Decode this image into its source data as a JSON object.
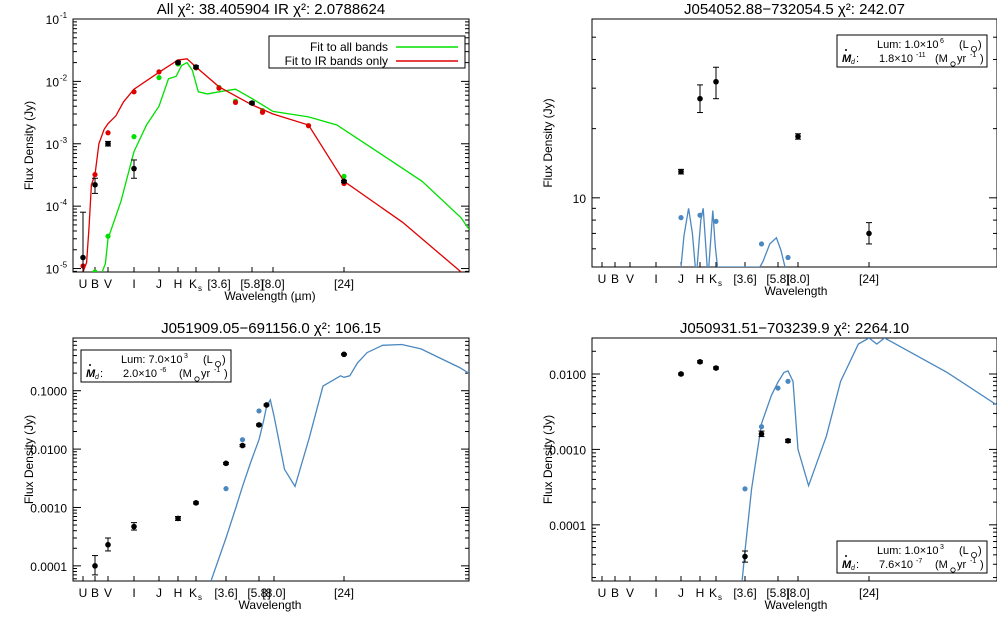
{
  "chart_data": [
    {
      "type": "scatter",
      "title": "All χ²: 38.405904  IR χ²: 2.0788624",
      "xlabel": "Wavelength (µm)",
      "ylabel": "Flux Density (Jy)",
      "yscale": "log",
      "ylim": [
        8.8e-06,
        0.1
      ],
      "bands": [
        "U",
        "B",
        "V",
        "I",
        "J",
        "H",
        "Ks",
        "[3.6]",
        "[5.8]",
        "[8.0]",
        "[24]"
      ],
      "yticks": [
        {
          "value": 0.1,
          "base": "10",
          "exp": "-1"
        },
        {
          "value": 0.01,
          "base": "10",
          "exp": "-2"
        },
        {
          "value": 0.001,
          "base": "10",
          "exp": "-3"
        },
        {
          "value": 0.0001,
          "base": "10",
          "exp": "-4"
        },
        {
          "value": 1e-05,
          "base": "10",
          "exp": "-5"
        }
      ],
      "legend": {
        "position": "top-right",
        "entries": [
          {
            "label": "Fit to all bands",
            "color": "#00e000"
          },
          {
            "label": "Fit to IR bands only",
            "color": "#e00000"
          }
        ]
      },
      "observed": [
        {
          "band": 0,
          "y": 1.5e-05,
          "err": [
            8.8e-06,
            8e-05
          ]
        },
        {
          "band": 1,
          "y": 0.00022,
          "err": [
            0.00016,
            0.00028
          ]
        },
        {
          "band": 2,
          "y": 0.001,
          "err": [
            0.00092,
            0.00109
          ]
        },
        {
          "band": 3,
          "y": 0.0004,
          "err": [
            0.00028,
            0.00055
          ]
        },
        {
          "band": 5,
          "y": 0.02,
          "err": [
            0.019,
            0.021
          ]
        },
        {
          "band": 6,
          "y": 0.017,
          "err": [
            0.0162,
            0.0178
          ]
        },
        {
          "band": 8,
          "y": 0.0045,
          "err": [
            0.0043,
            0.0047
          ]
        },
        {
          "band": 10,
          "y": 0.00025,
          "err": [
            0.00024,
            0.00026
          ]
        }
      ],
      "series": [
        {
          "name": "Fit to all bands",
          "color": "#00e000",
          "line": [
            [
              1.55,
              8.8e-06
            ],
            [
              1.8,
              1.2e-05
            ],
            [
              2.0,
              3e-05
            ],
            [
              2.5,
              0.00012
            ],
            [
              3.0,
              0.00075
            ],
            [
              3.5,
              0.002
            ],
            [
              4.0,
              0.004
            ],
            [
              4.5,
              0.011
            ],
            [
              4.9,
              0.012
            ],
            [
              5.2,
              0.018
            ],
            [
              5.5,
              0.02
            ],
            [
              5.8,
              0.015
            ],
            [
              6.1,
              0.0068
            ],
            [
              6.5,
              0.0063
            ],
            [
              7.0,
              0.0068
            ],
            [
              7.5,
              0.0075
            ],
            [
              8.0,
              0.0053
            ],
            [
              8.5,
              0.0042
            ],
            [
              9.0,
              0.0033
            ],
            [
              9.5,
              0.0027
            ],
            [
              9.9,
              0.002
            ],
            [
              11.0,
              0.00065
            ],
            [
              12.0,
              0.00025
            ],
            [
              13.0,
              6.5e-05
            ],
            [
              13.95,
              8.8e-06
            ]
          ],
          "points": [
            [
              1.0,
              8.8e-06
            ],
            [
              2.0,
              3.3e-05
            ],
            [
              3.0,
              0.0013
            ],
            [
              4.0,
              0.0115
            ],
            [
              5.0,
              0.019
            ],
            [
              6.0,
              0.0165
            ],
            [
              7.0,
              0.008
            ],
            [
              7.5,
              0.0048
            ],
            [
              8.5,
              0.0034
            ],
            [
              9.5,
              0.00195
            ],
            [
              10.0,
              0.0003
            ]
          ]
        },
        {
          "name": "Fit to IR bands only",
          "color": "#e00000",
          "line": [
            [
              0.0,
              8.8e-06
            ],
            [
              0.3,
              1.25e-05
            ],
            [
              0.5,
              4.5e-05
            ],
            [
              0.7,
              0.00022
            ],
            [
              1.0,
              0.00032
            ],
            [
              1.3,
              0.001
            ],
            [
              1.7,
              0.0017
            ],
            [
              2.0,
              0.0021
            ],
            [
              2.3,
              0.0028
            ],
            [
              2.6,
              0.0047
            ],
            [
              3.0,
              0.0075
            ],
            [
              4.0,
              0.014
            ],
            [
              5.0,
              0.022
            ],
            [
              5.5,
              0.023
            ],
            [
              6.0,
              0.017
            ],
            [
              7.0,
              0.0082
            ],
            [
              8.0,
              0.0042
            ],
            [
              9.0,
              0.003
            ],
            [
              9.5,
              0.002
            ],
            [
              10.0,
              0.00025
            ],
            [
              11.5,
              5.5e-05
            ],
            [
              13.0,
              8.8e-06
            ]
          ],
          "points": [
            [
              0.0,
              1.1e-05
            ],
            [
              1.0,
              0.00032
            ],
            [
              2.0,
              0.0015
            ],
            [
              3.0,
              0.0068
            ],
            [
              4.0,
              0.0142
            ],
            [
              5.0,
              0.0205
            ],
            [
              6.0,
              0.0165
            ],
            [
              7.0,
              0.0078
            ],
            [
              7.5,
              0.0046
            ],
            [
              8.5,
              0.0032
            ],
            [
              9.5,
              0.00195
            ],
            [
              10.0,
              0.00023
            ]
          ]
        }
      ]
    },
    {
      "type": "scatter",
      "title": "J054052.88−732054.5   χ²: 242.07",
      "xlabel": "Wavelength",
      "ylabel": "Flux Density (Jy)",
      "yscale": "log",
      "ylim": [
        5.0,
        60
      ],
      "bands": [
        "U",
        "B",
        "V",
        "I",
        "J",
        "H",
        "Ks",
        "[3.6]",
        "[5.8]",
        "[8.0]",
        "[24]"
      ],
      "yticks": [
        {
          "value": 10,
          "label": "10"
        }
      ],
      "lum_box": {
        "lum_label": "Lum: 1.0×10",
        "lum_exp": "6",
        "lum_unit": "(L",
        "lum_unit_tail": ")",
        "mdot_label": ":",
        "mdot_value": "1.8×10",
        "mdot_exp": "-11",
        "mdot_unit": "(M",
        "mdot_unit_tail": "yr",
        "mdot_unit_exp": "-1",
        "mdot_unit_close": ")"
      },
      "observed": [
        {
          "band": 4,
          "y": 13.0,
          "err": [
            12.7,
            13.3
          ]
        },
        {
          "band": 5,
          "y": 27.0,
          "err": [
            23.5,
            31.0
          ]
        },
        {
          "band": 6,
          "y": 32.0,
          "err": [
            27.0,
            37.0
          ]
        },
        {
          "band": 9,
          "y": 18.5,
          "err": [
            18.0,
            19.0
          ]
        },
        {
          "band": 10,
          "y": 7.0,
          "err": [
            6.3,
            7.8
          ]
        }
      ],
      "series": [
        {
          "name": "",
          "color": "#4b88c0",
          "line": [
            [
              4.0,
              5.0
            ],
            [
              4.15,
              6.8
            ],
            [
              4.4,
              9.0
            ],
            [
              4.6,
              7.0
            ],
            [
              4.75,
              5.0
            ],
            [
              4.85,
              5.0
            ],
            [
              5.05,
              8.0
            ],
            [
              5.2,
              9.0
            ],
            [
              5.45,
              5.0
            ],
            [
              5.55,
              5.0
            ],
            [
              5.8,
              8.8
            ],
            [
              5.95,
              6.2
            ],
            [
              6.05,
              5.0
            ],
            [
              7.45,
              5.0
            ],
            [
              7.55,
              5.3
            ],
            [
              7.75,
              6.3
            ],
            [
              7.95,
              6.7
            ],
            [
              8.15,
              5.9
            ],
            [
              8.35,
              5.0
            ]
          ],
          "points": [
            [
              4.0,
              8.2
            ],
            [
              5.0,
              8.4
            ],
            [
              6.0,
              7.9
            ],
            [
              7.5,
              6.3
            ],
            [
              8.5,
              5.5
            ]
          ]
        }
      ]
    },
    {
      "type": "scatter",
      "title": "J051909.05−691156.0   χ²: 106.15",
      "xlabel": "Wavelength",
      "ylabel": "Flux Density (Jy)",
      "yscale": "log",
      "ylim": [
        5.5e-05,
        0.8
      ],
      "bands": [
        "U",
        "B",
        "V",
        "I",
        "J",
        "H",
        "Ks",
        "[3.6]",
        "[5.8]",
        "[8.0]",
        "[24]"
      ],
      "yticks": [
        {
          "value": 0.1,
          "label": "0.1000"
        },
        {
          "value": 0.01,
          "label": "0.0100"
        },
        {
          "value": 0.001,
          "label": "0.0010"
        },
        {
          "value": 0.0001,
          "label": "0.0001"
        }
      ],
      "lum_box": {
        "lum_label": "Lum: 7.0×10",
        "lum_exp": "3",
        "lum_unit": "(L",
        "lum_unit_tail": ")",
        "mdot_label": ":",
        "mdot_value": "2.0×10",
        "mdot_exp": "-6",
        "mdot_unit": "(M",
        "mdot_unit_tail": "yr",
        "mdot_unit_exp": "-1",
        "mdot_unit_close": ")"
      },
      "observed": [
        {
          "band": 1,
          "y": 0.0001,
          "err": [
            7e-05,
            0.00015
          ]
        },
        {
          "band": 2,
          "y": 0.00023,
          "err": [
            0.00018,
            0.0003
          ]
        },
        {
          "band": 3,
          "y": 0.00047,
          "err": [
            0.00041,
            0.00055
          ]
        },
        {
          "band": 5,
          "y": 0.00065,
          "err": [
            0.0006,
            0.0007
          ]
        },
        {
          "band": 6,
          "y": 0.0012,
          "err": [
            0.00115,
            0.00125
          ]
        },
        {
          "band": 7,
          "y": 0.0057,
          "err": [
            0.0055,
            0.0059
          ]
        },
        {
          "band": 7.5,
          "y": 0.0115,
          "err": [
            0.011,
            0.012
          ]
        },
        {
          "band": 8,
          "y": 0.026,
          "err": [
            0.025,
            0.027
          ]
        },
        {
          "band": 8.5,
          "y": 0.057,
          "err": [
            0.055,
            0.059
          ]
        },
        {
          "band": 10,
          "y": 0.42,
          "err": [
            0.41,
            0.43
          ]
        }
      ],
      "series": [
        {
          "name": "",
          "color": "#4b88c0",
          "line": [
            [
              6.5,
              5.5e-05
            ],
            [
              7.0,
              0.0003
            ],
            [
              7.3,
              0.001
            ],
            [
              7.5,
              0.0023
            ],
            [
              7.75,
              0.006
            ],
            [
              8.0,
              0.0145
            ],
            [
              8.3,
              0.03
            ],
            [
              8.5,
              0.053
            ],
            [
              8.75,
              0.07
            ],
            [
              9.0,
              0.037
            ],
            [
              9.15,
              0.0045
            ],
            [
              9.3,
              0.0023
            ],
            [
              9.5,
              0.015
            ],
            [
              9.7,
              0.12
            ],
            [
              9.95,
              0.18
            ],
            [
              10.0,
              0.17
            ],
            [
              10.15,
              0.18
            ],
            [
              10.35,
              0.3
            ],
            [
              10.6,
              0.45
            ],
            [
              11.0,
              0.6
            ],
            [
              11.5,
              0.62
            ],
            [
              12.0,
              0.52
            ],
            [
              13.0,
              0.25
            ],
            [
              14.0,
              0.1
            ],
            [
              15.0,
              0.04
            ],
            [
              16.0,
              0.015
            ],
            [
              16.6,
              0.008
            ]
          ],
          "points": [
            [
              7.0,
              0.0021
            ],
            [
              7.5,
              0.0145
            ],
            [
              8.0,
              0.045
            ],
            [
              10.0,
              0.42
            ]
          ]
        }
      ]
    },
    {
      "type": "scatter",
      "title": "J050931.51−703239.9   χ²: 2264.10",
      "xlabel": "Wavelength",
      "ylabel": "Flux Density (Jy)",
      "yscale": "log",
      "ylim": [
        1.8e-05,
        0.03
      ],
      "bands": [
        "U",
        "B",
        "V",
        "I",
        "J",
        "H",
        "Ks",
        "[3.6]",
        "[5.8]",
        "[8.0]",
        "[24]"
      ],
      "yticks": [
        {
          "value": 0.01,
          "label": "0.0100"
        },
        {
          "value": 0.001,
          "label": "0.0010"
        },
        {
          "value": 0.0001,
          "label": "0.0001"
        }
      ],
      "lum_box": {
        "lum_label": "Lum: 1.0×10",
        "lum_exp": "3",
        "lum_unit": "(L",
        "lum_unit_tail": ")",
        "mdot_label": ":",
        "mdot_value": "7.6×10",
        "mdot_exp": "-7",
        "mdot_unit": "(M",
        "mdot_unit_tail": "yr",
        "mdot_unit_exp": "-1",
        "mdot_unit_close": ")"
      },
      "observed": [
        {
          "band": 4,
          "y": 0.01,
          "err": [
            0.0097,
            0.0103
          ]
        },
        {
          "band": 5,
          "y": 0.0145,
          "err": [
            0.014,
            0.015
          ]
        },
        {
          "band": 6,
          "y": 0.012,
          "err": [
            0.0116,
            0.0124
          ]
        },
        {
          "band": 7,
          "y": 3.8e-05,
          "err": [
            3.2e-05,
            4.5e-05
          ]
        },
        {
          "band": 7.5,
          "y": 0.0016,
          "err": [
            0.00148,
            0.00175
          ]
        },
        {
          "band": 8.5,
          "y": 0.0013,
          "err": [
            0.00124,
            0.00136
          ]
        }
      ],
      "series": [
        {
          "name": "",
          "color": "#4b88c0",
          "line": [
            [
              6.9,
              1.8e-05
            ],
            [
              7.0,
              4.5e-05
            ],
            [
              7.2,
              0.0003
            ],
            [
              7.5,
              0.0022
            ],
            [
              7.8,
              0.0052
            ],
            [
              8.0,
              0.0078
            ],
            [
              8.3,
              0.0105
            ],
            [
              8.5,
              0.011
            ],
            [
              8.75,
              0.008
            ],
            [
              9.0,
              0.001
            ],
            [
              9.15,
              0.00033
            ],
            [
              9.4,
              0.0015
            ],
            [
              9.6,
              0.008
            ],
            [
              9.85,
              0.025
            ],
            [
              10.0,
              0.03
            ],
            [
              10.2,
              0.025
            ],
            [
              10.4,
              0.03
            ],
            [
              12.0,
              0.0105
            ],
            [
              13.3,
              0.0038
            ],
            [
              13.8,
              0.0025
            ]
          ],
          "points": [
            [
              7.0,
              0.0003
            ],
            [
              7.5,
              0.002
            ],
            [
              8.0,
              0.0065
            ],
            [
              8.5,
              0.008
            ]
          ]
        }
      ]
    }
  ]
}
